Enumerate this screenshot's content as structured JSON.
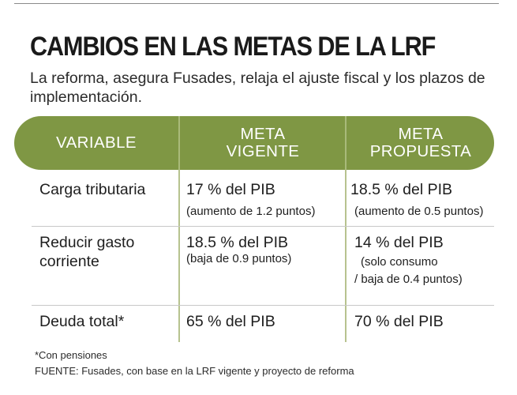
{
  "title": "CAMBIOS EN LAS METAS DE LA LRF",
  "subtitle": "La reforma, asegura Fusades, relaja el ajuste fiscal y los plazos de implementación.",
  "table": {
    "headers": {
      "variable": "VARIABLE",
      "vigente_line1": "META",
      "vigente_line2": "VIGENTE",
      "propuesta_line1": "META",
      "propuesta_line2": "PROPUESTA"
    },
    "rows": [
      {
        "label_line1": "Carga tributaria",
        "label_line2": "",
        "vigente_main": "17 % del PIB",
        "vigente_sub1": "(aumento de 1.2 puntos)",
        "propuesta_main": "18.5 % del PIB",
        "propuesta_sub1": "(aumento de 0.5 puntos)",
        "propuesta_sub2": ""
      },
      {
        "label_line1": "Reducir gasto",
        "label_line2": "corriente",
        "vigente_main": "18.5 % del PIB",
        "vigente_sub1": "(baja de 0.9 puntos)",
        "propuesta_main": "14 % del PIB",
        "propuesta_sub1": "(solo consumo",
        "propuesta_sub2": "/ baja de 0.4 puntos)"
      },
      {
        "label_line1": "Deuda total*",
        "label_line2": "",
        "vigente_main": "65 % del PIB",
        "vigente_sub1": "",
        "propuesta_main": "70 % del PIB",
        "propuesta_sub1": "",
        "propuesta_sub2": ""
      }
    ]
  },
  "footnote": "*Con pensiones",
  "source": "FUENTE: Fusades, con base en la LRF vigente y proyecto de reforma",
  "colors": {
    "header_band": "#7f9744",
    "header_text": "#ffffff",
    "text": "#1e1e1e"
  }
}
